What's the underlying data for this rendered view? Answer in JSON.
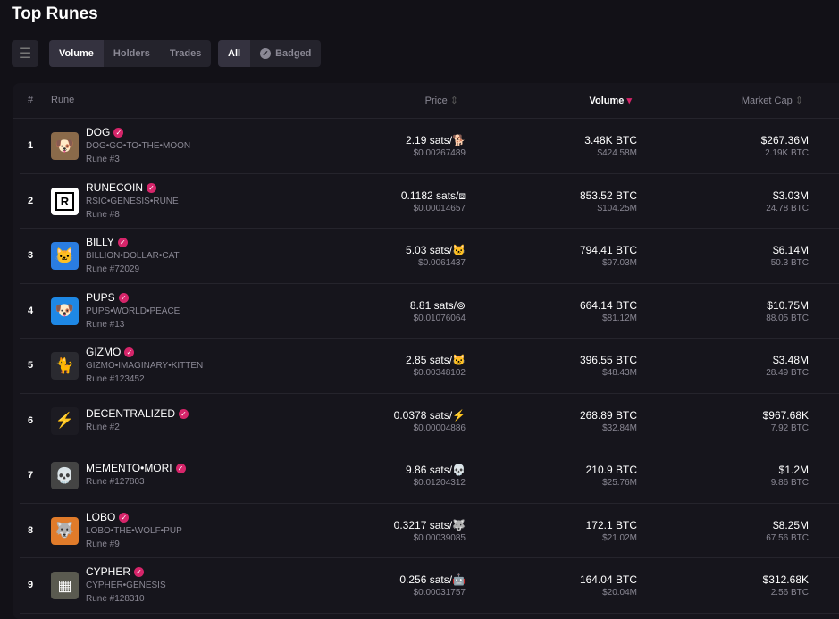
{
  "title": "Top Runes",
  "sort_tabs": [
    {
      "label": "Volume",
      "active": true
    },
    {
      "label": "Holders",
      "active": false
    },
    {
      "label": "Trades",
      "active": false
    }
  ],
  "filter_tabs": [
    {
      "label": "All",
      "active": true
    },
    {
      "label": "Badged",
      "active": false
    }
  ],
  "columns": {
    "num": "#",
    "rune": "Rune",
    "price": "Price",
    "volume": "Volume",
    "market_cap": "Market Cap"
  },
  "colors": {
    "badge": "#d6256a",
    "background": "#121117"
  },
  "rows": [
    {
      "rank": "1",
      "name": "DOG",
      "spaced": "DOG•GO•TO•THE•MOON",
      "rune": "Rune #3",
      "price": "2.19 sats/🐕",
      "price_usd": "$0.00267489",
      "volume": "3.48K BTC",
      "volume_usd": "$424.58M",
      "mcap": "$267.36M",
      "mcap_btc": "2.19K BTC",
      "icon": "🐶",
      "icon_bg": "#8a6a4a"
    },
    {
      "rank": "2",
      "name": "RUNECOIN",
      "spaced": "RSIC•GENESIS•RUNE",
      "rune": "Rune #8",
      "price": "0.1182 sats/⧈",
      "price_usd": "$0.00014657",
      "volume": "853.52 BTC",
      "volume_usd": "$104.25M",
      "mcap": "$3.03M",
      "mcap_btc": "24.78 BTC",
      "icon": "R",
      "icon_bg": "#ffffff"
    },
    {
      "rank": "3",
      "name": "BILLY",
      "spaced": "BILLION•DOLLAR•CAT",
      "rune": "Rune #72029",
      "price": "5.03 sats/🐱",
      "price_usd": "$0.0061437",
      "volume": "794.41 BTC",
      "volume_usd": "$97.03M",
      "mcap": "$6.14M",
      "mcap_btc": "50.3 BTC",
      "icon": "🐱",
      "icon_bg": "#2a7de1"
    },
    {
      "rank": "4",
      "name": "PUPS",
      "spaced": "PUPS•WORLD•PEACE",
      "rune": "Rune #13",
      "price": "8.81 sats/⊚",
      "price_usd": "$0.01076064",
      "volume": "664.14 BTC",
      "volume_usd": "$81.12M",
      "mcap": "$10.75M",
      "mcap_btc": "88.05 BTC",
      "icon": "🐶",
      "icon_bg": "#1e88e5"
    },
    {
      "rank": "5",
      "name": "GIZMO",
      "spaced": "GIZMO•IMAGINARY•KITTEN",
      "rune": "Rune #123452",
      "price": "2.85 sats/🐱",
      "price_usd": "$0.00348102",
      "volume": "396.55 BTC",
      "volume_usd": "$48.43M",
      "mcap": "$3.48M",
      "mcap_btc": "28.49 BTC",
      "icon": "🐈",
      "icon_bg": "#2a2a30"
    },
    {
      "rank": "6",
      "name": "DECENTRALIZED",
      "spaced": "",
      "rune": "Rune #2",
      "price": "0.0378 sats/⚡",
      "price_usd": "$0.00004886",
      "volume": "268.89 BTC",
      "volume_usd": "$32.84M",
      "mcap": "$967.68K",
      "mcap_btc": "7.92 BTC",
      "icon": "⚡",
      "icon_bg": "#1c1b22"
    },
    {
      "rank": "7",
      "name": "MEMENTO•MORI",
      "spaced": "",
      "rune": "Rune #127803",
      "price": "9.86 sats/💀",
      "price_usd": "$0.01204312",
      "volume": "210.9 BTC",
      "volume_usd": "$25.76M",
      "mcap": "$1.2M",
      "mcap_btc": "9.86 BTC",
      "icon": "💀",
      "icon_bg": "#444"
    },
    {
      "rank": "8",
      "name": "LOBO",
      "spaced": "LOBO•THE•WOLF•PUP",
      "rune": "Rune #9",
      "price": "0.3217 sats/🐺",
      "price_usd": "$0.00039085",
      "volume": "172.1 BTC",
      "volume_usd": "$21.02M",
      "mcap": "$8.25M",
      "mcap_btc": "67.56 BTC",
      "icon": "🐺",
      "icon_bg": "#e07b2a"
    },
    {
      "rank": "9",
      "name": "CYPHER",
      "spaced": "CYPHER•GENESIS",
      "rune": "Rune #128310",
      "price": "0.256 sats/🤖",
      "price_usd": "$0.00031757",
      "volume": "164.04 BTC",
      "volume_usd": "$20.04M",
      "mcap": "$312.68K",
      "mcap_btc": "2.56 BTC",
      "icon": "▦",
      "icon_bg": "#5a5a50"
    }
  ]
}
